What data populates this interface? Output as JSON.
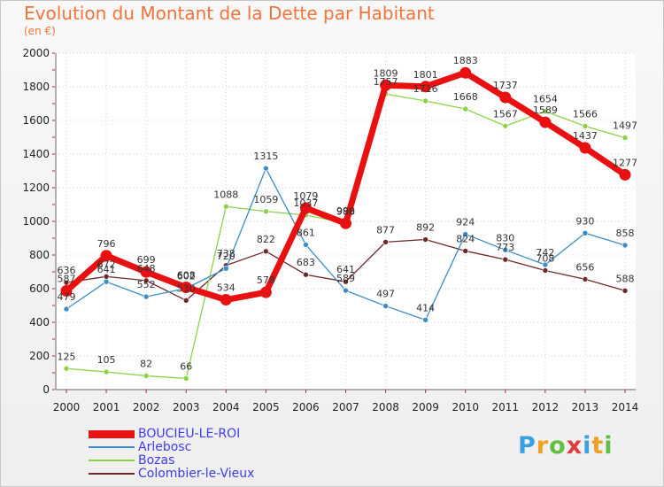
{
  "header": {
    "title": "Evolution du Montant de la Dette par Habitant",
    "unit": "(en €)"
  },
  "logo": {
    "letters": [
      "P",
      "r",
      "o",
      "x",
      "i",
      "t",
      "i"
    ],
    "colors": [
      "#3aa0e0",
      "#f0a020",
      "#60c040",
      "#e03c3c",
      "#3aa0e0",
      "#f0a020",
      "#60c040"
    ]
  },
  "chart_data": {
    "type": "line",
    "title": "Evolution du Montant de la Dette par Habitant",
    "subtitle": "(en €)",
    "xlabel": "",
    "ylabel": "",
    "ylim": [
      0,
      2000
    ],
    "grid": true,
    "legend_position": "bottom-left",
    "x": [
      "2000",
      "2001",
      "2002",
      "2003",
      "2004",
      "2005",
      "2006",
      "2007",
      "2008",
      "2009",
      "2010",
      "2011",
      "2012",
      "2013",
      "2014"
    ],
    "y_ticks": [
      "0",
      "200",
      "400",
      "600",
      "800",
      "1000",
      "1200",
      "1400",
      "1600",
      "1800",
      "2000"
    ],
    "series": [
      {
        "name": "BOUCIEU-LE-ROI",
        "color": "#e81010",
        "values": [
          587,
          796,
          699,
          608,
          534,
          578,
          1079,
          988,
          1809,
          1801,
          1883,
          1737,
          1589,
          1437,
          1277
        ]
      },
      {
        "name": "Arlebosc",
        "color": "#3c8cc8",
        "values": [
          479,
          641,
          552,
          602,
          720,
          1315,
          861,
          589,
          497,
          414,
          924,
          830,
          742,
          930,
          858
        ]
      },
      {
        "name": "Bozas",
        "color": "#8cd246",
        "values": [
          125,
          105,
          82,
          66,
          1088,
          1059,
          1037,
          990,
          1757,
          1716,
          1668,
          1567,
          1654,
          1566,
          1497
        ]
      },
      {
        "name": "Colombier-le-Vieux",
        "color": "#6e2828",
        "values": [
          636,
          672,
          648,
          530,
          738,
          822,
          683,
          641,
          877,
          892,
          824,
          773,
          708,
          656,
          588
        ]
      }
    ]
  }
}
